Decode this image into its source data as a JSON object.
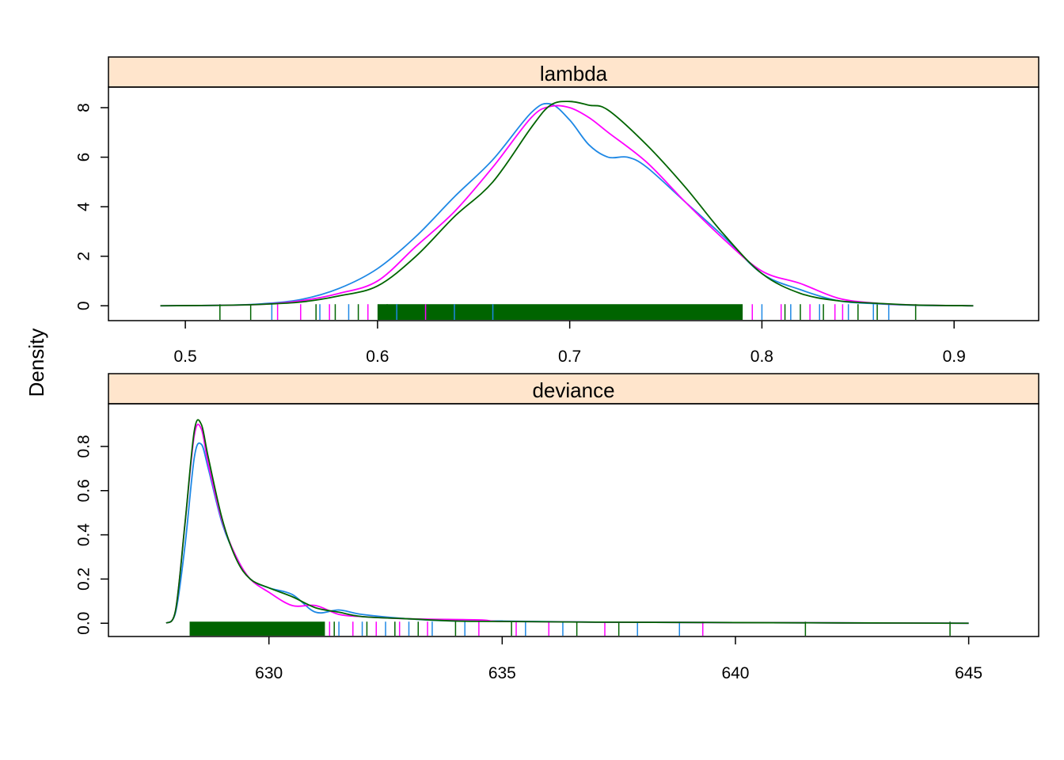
{
  "figure": {
    "ylabel": "Density"
  },
  "colors": {
    "strip": "#FFE5CC",
    "series": [
      "#1E88E5",
      "#FF00FF",
      "#006400"
    ]
  },
  "chart_data": [
    {
      "type": "area",
      "title": "lambda",
      "xlim": [
        0.46,
        0.944
      ],
      "ylim": [
        -0.6,
        8.0
      ],
      "xticks": [
        "0.5",
        "0.6",
        "0.7",
        "0.8",
        "0.9"
      ],
      "yticks": [
        "0",
        "2",
        "4",
        "6",
        "8"
      ],
      "series": [
        {
          "x": [
            0.487,
            0.52,
            0.54,
            0.56,
            0.58,
            0.6,
            0.62,
            0.64,
            0.66,
            0.68,
            0.69,
            0.7,
            0.71,
            0.72,
            0.73,
            0.74,
            0.76,
            0.78,
            0.8,
            0.82,
            0.84,
            0.86,
            0.88,
            0.91
          ],
          "values": [
            0,
            0.02,
            0.08,
            0.25,
            0.7,
            1.5,
            2.8,
            4.4,
            5.9,
            7.8,
            8.15,
            7.5,
            6.5,
            6.0,
            6.0,
            5.6,
            4.2,
            2.8,
            1.3,
            0.65,
            0.2,
            0.08,
            0.02,
            0
          ]
        },
        {
          "x": [
            0.487,
            0.52,
            0.54,
            0.56,
            0.58,
            0.6,
            0.62,
            0.64,
            0.66,
            0.68,
            0.69,
            0.7,
            0.71,
            0.72,
            0.74,
            0.76,
            0.78,
            0.8,
            0.82,
            0.84,
            0.86,
            0.88,
            0.91
          ],
          "values": [
            0,
            0.02,
            0.06,
            0.2,
            0.5,
            1.0,
            2.4,
            3.8,
            5.6,
            7.6,
            8.05,
            8.0,
            7.6,
            7.0,
            5.8,
            4.2,
            2.7,
            1.4,
            0.9,
            0.3,
            0.1,
            0.03,
            0
          ]
        },
        {
          "x": [
            0.487,
            0.52,
            0.54,
            0.56,
            0.58,
            0.6,
            0.62,
            0.64,
            0.66,
            0.68,
            0.69,
            0.7,
            0.71,
            0.72,
            0.74,
            0.76,
            0.78,
            0.8,
            0.82,
            0.84,
            0.86,
            0.88,
            0.91
          ],
          "values": [
            0,
            0.02,
            0.06,
            0.15,
            0.4,
            0.8,
            2.0,
            3.6,
            5.0,
            7.2,
            8.1,
            8.25,
            8.1,
            7.9,
            6.5,
            4.8,
            2.9,
            1.3,
            0.5,
            0.2,
            0.1,
            0.03,
            0
          ]
        }
      ],
      "rug": {
        "dense": [
          0.6,
          0.79
        ],
        "ticks": [
          [
            0.545,
            0.57,
            0.585,
            0.61,
            0.64,
            0.66,
            0.8,
            0.815,
            0.83,
            0.845,
            0.858,
            0.866
          ],
          [
            0.548,
            0.56,
            0.575,
            0.595,
            0.625,
            0.795,
            0.81,
            0.825,
            0.838,
            0.842
          ],
          [
            0.518,
            0.534,
            0.568,
            0.578,
            0.59,
            0.605,
            0.812,
            0.82,
            0.832,
            0.85,
            0.86,
            0.88
          ]
        ]
      }
    },
    {
      "type": "area",
      "title": "deviance",
      "xlim": [
        626.56,
        646.5
      ],
      "ylim": [
        -0.06,
        0.9
      ],
      "xticks": [
        "630",
        "635",
        "640",
        "645"
      ],
      "yticks": [
        "0.0",
        "0.2",
        "0.4",
        "0.6",
        "0.8"
      ],
      "series": [
        {
          "x": [
            627.8,
            628.0,
            628.2,
            628.4,
            628.55,
            628.7,
            629.0,
            629.3,
            629.6,
            630.0,
            630.5,
            631.0,
            631.5,
            632.0,
            633.0,
            634.0,
            635.0,
            637.0,
            640.0,
            645.0
          ],
          "values": [
            0,
            0.05,
            0.35,
            0.75,
            0.81,
            0.7,
            0.45,
            0.3,
            0.2,
            0.16,
            0.13,
            0.05,
            0.06,
            0.04,
            0.02,
            0.01,
            0.01,
            0.005,
            0.003,
            0
          ]
        },
        {
          "x": [
            627.8,
            628.0,
            628.2,
            628.4,
            628.55,
            628.7,
            629.0,
            629.3,
            629.6,
            630.0,
            630.5,
            631.0,
            631.5,
            632.0,
            633.0,
            634.5,
            635.0,
            637.0,
            640.0,
            645.0
          ],
          "values": [
            0,
            0.06,
            0.45,
            0.85,
            0.88,
            0.72,
            0.46,
            0.3,
            0.2,
            0.14,
            0.08,
            0.08,
            0.04,
            0.03,
            0.02,
            0.015,
            0.008,
            0.005,
            0.003,
            0
          ]
        },
        {
          "x": [
            627.8,
            628.0,
            628.2,
            628.4,
            628.55,
            628.7,
            629.0,
            629.3,
            629.6,
            630.0,
            630.5,
            631.0,
            631.5,
            632.0,
            633.0,
            634.0,
            635.0,
            637.0,
            640.0,
            645.0
          ],
          "values": [
            0,
            0.06,
            0.45,
            0.87,
            0.9,
            0.75,
            0.47,
            0.29,
            0.2,
            0.16,
            0.12,
            0.07,
            0.05,
            0.03,
            0.02,
            0.01,
            0.008,
            0.005,
            0.003,
            0
          ]
        }
      ],
      "rug": {
        "dense": [
          628.3,
          631.2
        ],
        "ticks": [
          [
            631.5,
            632.0,
            632.5,
            633.0,
            633.5,
            634.2,
            635.5,
            636.3,
            637.9,
            638.8,
            639.3
          ],
          [
            631.3,
            631.8,
            632.3,
            632.8,
            633.4,
            634.5,
            635.3,
            636.0,
            637.2,
            639.3
          ],
          [
            631.4,
            632.1,
            632.7,
            633.2,
            634.0,
            635.2,
            636.6,
            637.5,
            641.5,
            644.6
          ]
        ]
      }
    }
  ]
}
